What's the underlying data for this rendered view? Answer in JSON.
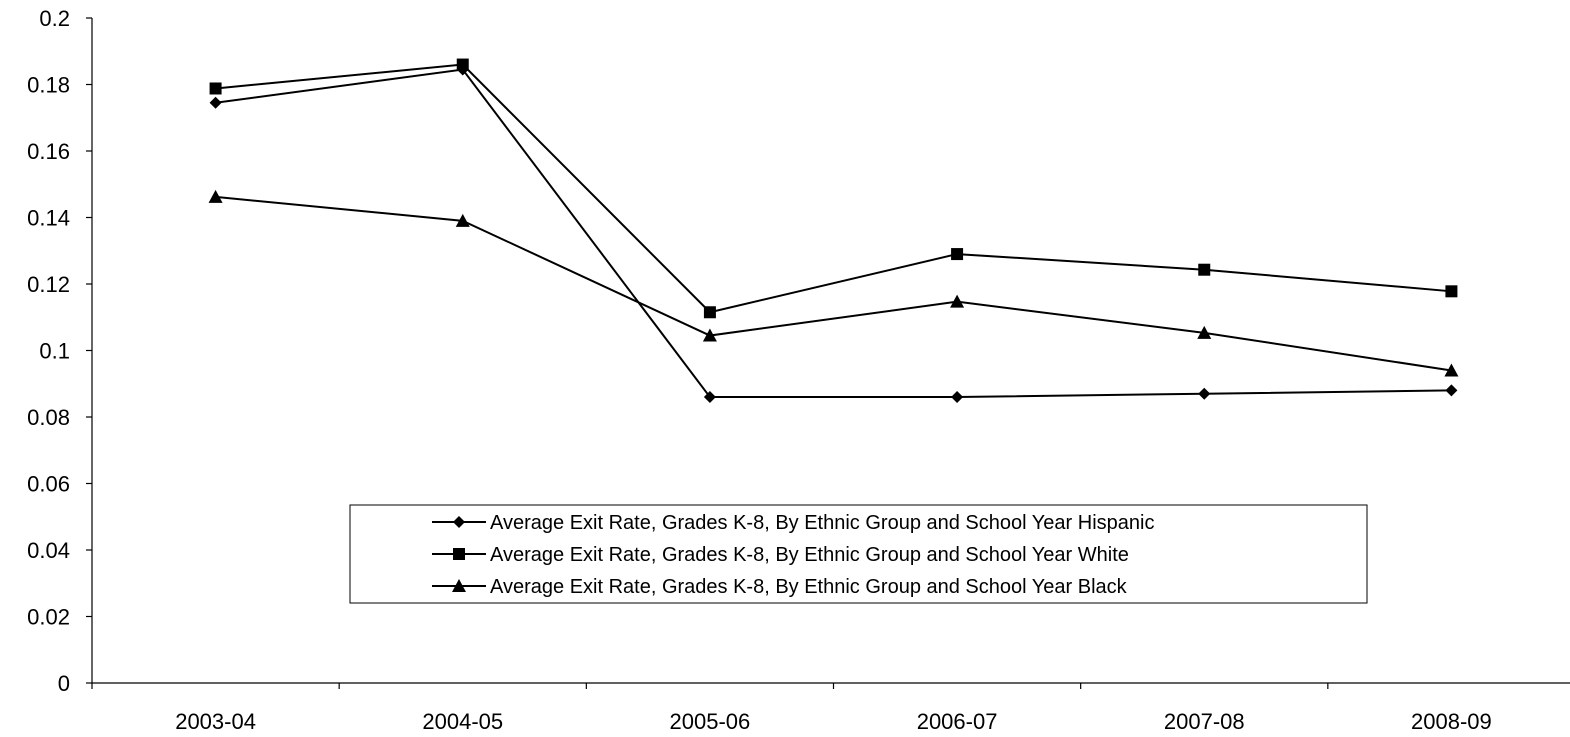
{
  "chart_data": {
    "type": "line",
    "title": "",
    "xlabel": "",
    "ylabel": "",
    "categories": [
      "2003-04",
      "2004-05",
      "2005-06",
      "2006-07",
      "2007-08",
      "2008-09"
    ],
    "ylim": [
      0,
      0.2
    ],
    "yticks": [
      "0",
      "0.02",
      "0.04",
      "0.06",
      "0.08",
      "0.1",
      "0.12",
      "0.14",
      "0.16",
      "0.18",
      "0.2"
    ],
    "grid": false,
    "legend_position": "center-bottom",
    "series": [
      {
        "name": "Average Exit Rate, Grades K-8, By Ethnic Group and School Year Hispanic",
        "marker": "diamond",
        "color": "#000000",
        "values": [
          0.1745,
          0.1845,
          0.086,
          0.086,
          0.087,
          0.088
        ]
      },
      {
        "name": "Average Exit Rate, Grades K-8, By Ethnic Group and School Year White",
        "marker": "square",
        "color": "#000000",
        "values": [
          0.1788,
          0.186,
          0.1115,
          0.129,
          0.1243,
          0.1178
        ]
      },
      {
        "name": "Average Exit Rate, Grades K-8, By Ethnic Group and School Year Black",
        "marker": "triangle",
        "color": "#000000",
        "values": [
          0.1462,
          0.139,
          0.1045,
          0.1147,
          0.1053,
          0.094
        ]
      }
    ]
  }
}
